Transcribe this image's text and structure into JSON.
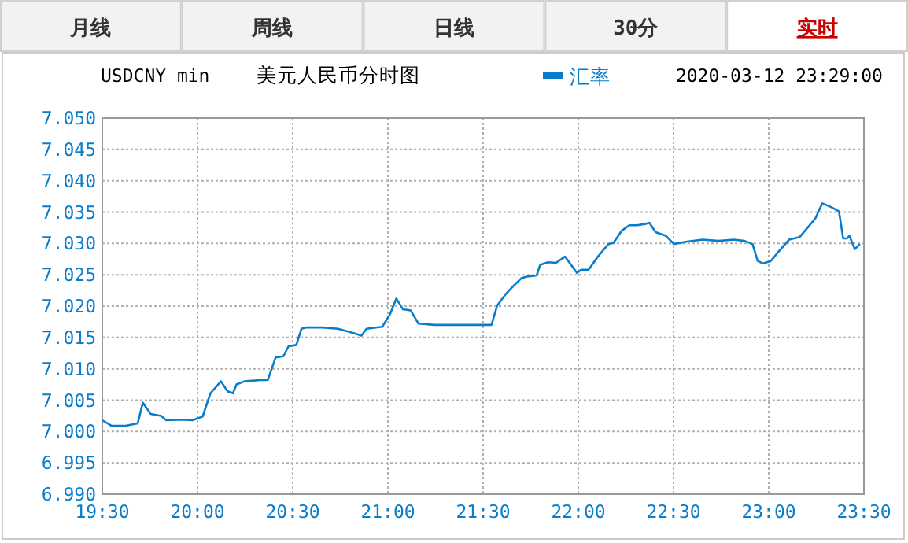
{
  "chart_data": {
    "type": "line",
    "title": "美元人民币分时图",
    "subtitle": "USDCNY min",
    "annotations": [
      "月线",
      "周线",
      "日线",
      "30分",
      "实时",
      "2020-03-12 23:29:00"
    ],
    "legend": "top",
    "grid": true,
    "marker": "none",
    "line_style": "solid",
    "xlim": [
      19.5,
      23.5
    ],
    "xticks": [
      {
        "value": 19.5,
        "label": "19:30"
      },
      {
        "value": 20,
        "label": "20:00"
      },
      {
        "value": 20.5,
        "label": "20:30"
      },
      {
        "value": 21,
        "label": "21:00"
      },
      {
        "value": 21.5,
        "label": "21:30"
      },
      {
        "value": 22,
        "label": "22:00"
      },
      {
        "value": 22.5,
        "label": "22:30"
      },
      {
        "value": 23,
        "label": "23:00"
      },
      {
        "value": 23.5,
        "label": "23:30"
      }
    ],
    "ylim": [
      6.99,
      7.05
    ],
    "yticks": [
      {
        "value": 6.99,
        "label": "6.990"
      },
      {
        "value": 6.995,
        "label": "6.995"
      },
      {
        "value": 7.0,
        "label": "7.000"
      },
      {
        "value": 7.005,
        "label": "7.005"
      },
      {
        "value": 7.01,
        "label": "7.010"
      },
      {
        "value": 7.015,
        "label": "7.015"
      },
      {
        "value": 7.02,
        "label": "7.020"
      },
      {
        "value": 7.025,
        "label": "7.025"
      },
      {
        "value": 7.03,
        "label": "7.030"
      },
      {
        "value": 7.035,
        "label": "7.035"
      },
      {
        "value": 7.04,
        "label": "7.040"
      },
      {
        "value": 7.045,
        "label": "7.045"
      },
      {
        "value": 7.05,
        "label": "7.050"
      }
    ],
    "series": [
      {
        "name": "汇率",
        "color": "#0a7ccc",
        "x": [
          19.5,
          19.549,
          19.617,
          19.686,
          19.713,
          19.754,
          19.809,
          19.836,
          19.918,
          19.973,
          20.027,
          20.068,
          20.123,
          20.158,
          20.186,
          20.205,
          20.246,
          20.328,
          20.369,
          20.41,
          20.451,
          20.478,
          20.519,
          20.546,
          20.574,
          20.656,
          20.738,
          20.82,
          20.861,
          20.888,
          20.97,
          21.011,
          21.044,
          21.079,
          21.12,
          21.161,
          21.243,
          21.277,
          21.544,
          21.574,
          21.621,
          21.662,
          21.703,
          21.731,
          21.781,
          21.8,
          21.841,
          21.883,
          21.93,
          21.952,
          21.993,
          22.015,
          22.054,
          22.103,
          22.158,
          22.185,
          22.227,
          22.268,
          22.309,
          22.351,
          22.373,
          22.406,
          22.461,
          22.502,
          22.571,
          22.653,
          22.736,
          22.818,
          22.873,
          22.915,
          22.942,
          22.97,
          23.011,
          23.052,
          23.107,
          23.162,
          23.204,
          23.245,
          23.281,
          23.328,
          23.369,
          23.391,
          23.41,
          23.424,
          23.452,
          23.479
        ],
        "values": [
          7.0018,
          7.0009,
          7.0009,
          7.0013,
          7.0046,
          7.0028,
          7.0025,
          7.0018,
          7.0019,
          7.0018,
          7.0024,
          7.0061,
          7.008,
          7.0064,
          7.0061,
          7.0075,
          7.008,
          7.0082,
          7.0082,
          7.0118,
          7.012,
          7.0136,
          7.0138,
          7.0164,
          7.0166,
          7.0166,
          7.0164,
          7.0157,
          7.0153,
          7.0164,
          7.0167,
          7.0187,
          7.0212,
          7.0195,
          7.0193,
          7.0172,
          7.017,
          7.017,
          7.017,
          7.0201,
          7.022,
          7.0233,
          7.0245,
          7.0247,
          7.0249,
          7.0266,
          7.027,
          7.0269,
          7.0279,
          7.027,
          7.0253,
          7.0258,
          7.0258,
          7.0279,
          7.0299,
          7.0301,
          7.032,
          7.0329,
          7.0329,
          7.0331,
          7.0333,
          7.0318,
          7.0312,
          7.0299,
          7.0303,
          7.0306,
          7.0304,
          7.0306,
          7.0304,
          7.0299,
          7.0272,
          7.0268,
          7.0272,
          7.0287,
          7.0306,
          7.031,
          7.0325,
          7.034,
          7.0364,
          7.0358,
          7.0351,
          7.0308,
          7.0308,
          7.0312,
          7.0291,
          7.0299
        ]
      }
    ]
  }
}
